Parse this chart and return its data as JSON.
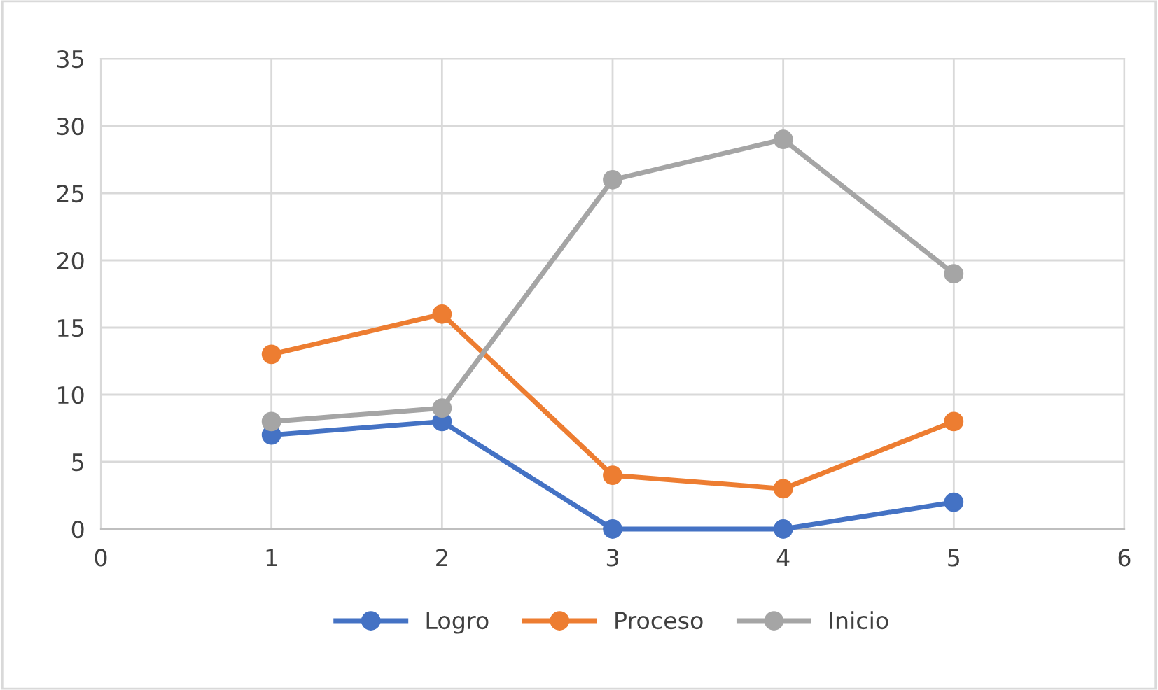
{
  "chart_data": {
    "type": "line",
    "x": [
      1,
      2,
      3,
      4,
      5
    ],
    "series": [
      {
        "name": "Logro",
        "color": "#4472c4",
        "values": [
          7,
          8,
          0,
          0,
          2
        ]
      },
      {
        "name": "Proceso",
        "color": "#ed7d31",
        "values": [
          13,
          16,
          4,
          3,
          8
        ]
      },
      {
        "name": "Inicio",
        "color": "#a5a5a5",
        "values": [
          8,
          9,
          26,
          29,
          19
        ]
      }
    ],
    "xlim": [
      0,
      6
    ],
    "xticks": [
      0,
      1,
      2,
      3,
      4,
      5,
      6
    ],
    "ylim": [
      0,
      35
    ],
    "yticks": [
      0,
      5,
      10,
      15,
      20,
      25,
      30,
      35
    ],
    "grid": true,
    "legend": "bottom",
    "marker": "circle",
    "line_style": "solid"
  }
}
